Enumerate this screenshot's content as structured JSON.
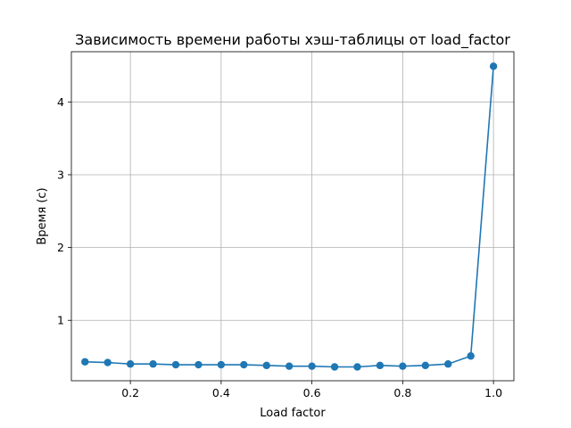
{
  "chart_data": {
    "type": "line",
    "title": "Зависимость времени работы хэш-таблицы от load_factor",
    "xlabel": "Load factor",
    "ylabel": "Время (с)",
    "xlim": [
      0.07,
      1.045
    ],
    "ylim": [
      0.17,
      4.69
    ],
    "xticks": [
      0.2,
      0.4,
      0.6,
      0.8,
      1.0
    ],
    "xtick_labels": [
      "0.2",
      "0.4",
      "0.6",
      "0.8",
      "1.0"
    ],
    "yticks": [
      1,
      2,
      3,
      4
    ],
    "ytick_labels": [
      "1",
      "2",
      "3",
      "4"
    ],
    "grid": true,
    "legend": "none",
    "series": [
      {
        "color": "#1f77b4",
        "marker": "circle",
        "x": [
          0.1,
          0.15,
          0.2,
          0.25,
          0.3,
          0.35,
          0.4,
          0.45,
          0.5,
          0.55,
          0.6,
          0.65,
          0.7,
          0.75,
          0.8,
          0.85,
          0.9,
          0.95,
          1.0
        ],
        "y": [
          0.43,
          0.42,
          0.4,
          0.4,
          0.39,
          0.39,
          0.39,
          0.39,
          0.38,
          0.37,
          0.37,
          0.36,
          0.36,
          0.38,
          0.37,
          0.38,
          0.4,
          0.51,
          4.49
        ]
      }
    ]
  }
}
